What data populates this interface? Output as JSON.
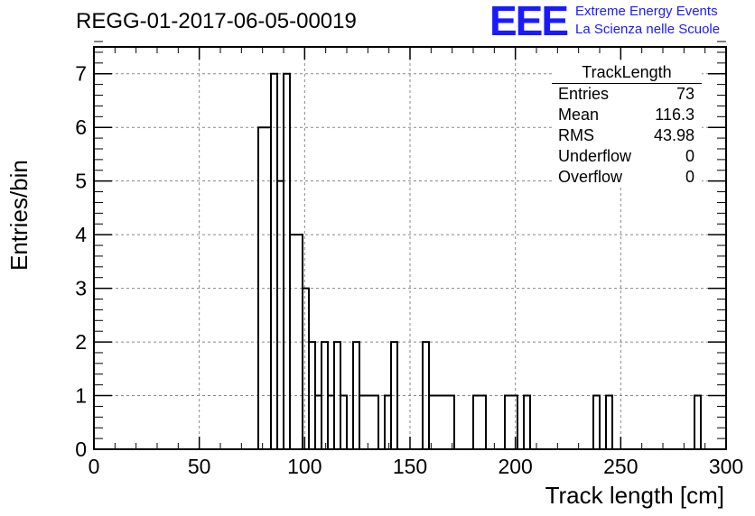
{
  "header": {
    "title": "REGG-01-2017-06-05-00019",
    "logo_text": "EEE",
    "org_line1": "Extreme Energy Events",
    "org_line2": "La Scienza nelle Scuole"
  },
  "stats": {
    "title": "TrackLength",
    "rows": [
      {
        "label": "Entries",
        "value": "73"
      },
      {
        "label": "Mean",
        "value": "116.3"
      },
      {
        "label": "RMS",
        "value": "43.98"
      },
      {
        "label": "Underflow",
        "value": "0"
      },
      {
        "label": "Overflow",
        "value": "0"
      }
    ]
  },
  "colors": {
    "logo": "#1a1aff",
    "line": "#000000",
    "grid": "#888888"
  },
  "chart_data": {
    "type": "histogram",
    "title": "REGG-01-2017-06-05-00019",
    "xlabel": "Track length [cm]",
    "ylabel": "Entries/bin",
    "xlim": [
      0,
      300
    ],
    "ylim": [
      0,
      7.5
    ],
    "grid": true,
    "bin_width": 3,
    "xticks": [
      0,
      50,
      100,
      150,
      200,
      250,
      300
    ],
    "yticks": [
      0,
      1,
      2,
      3,
      4,
      5,
      6,
      7
    ],
    "bins": [
      {
        "x0": 78,
        "x1": 84,
        "count": 6
      },
      {
        "x0": 84,
        "x1": 87,
        "count": 7
      },
      {
        "x0": 87,
        "x1": 90,
        "count": 5
      },
      {
        "x0": 90,
        "x1": 93,
        "count": 7
      },
      {
        "x0": 93,
        "x1": 99,
        "count": 4
      },
      {
        "x0": 99,
        "x1": 102,
        "count": 3
      },
      {
        "x0": 102,
        "x1": 105,
        "count": 2
      },
      {
        "x0": 105,
        "x1": 108,
        "count": 1
      },
      {
        "x0": 108,
        "x1": 111,
        "count": 2
      },
      {
        "x0": 111,
        "x1": 114,
        "count": 1
      },
      {
        "x0": 114,
        "x1": 117,
        "count": 2
      },
      {
        "x0": 117,
        "x1": 120,
        "count": 1
      },
      {
        "x0": 123,
        "x1": 126,
        "count": 2
      },
      {
        "x0": 126,
        "x1": 135,
        "count": 1
      },
      {
        "x0": 138,
        "x1": 141,
        "count": 1
      },
      {
        "x0": 141,
        "x1": 144,
        "count": 2
      },
      {
        "x0": 156,
        "x1": 159,
        "count": 2
      },
      {
        "x0": 159,
        "x1": 171,
        "count": 1
      },
      {
        "x0": 180,
        "x1": 186,
        "count": 1
      },
      {
        "x0": 195,
        "x1": 201,
        "count": 1
      },
      {
        "x0": 204,
        "x1": 207,
        "count": 1
      },
      {
        "x0": 237,
        "x1": 240,
        "count": 1
      },
      {
        "x0": 243,
        "x1": 246,
        "count": 1
      },
      {
        "x0": 285,
        "x1": 288,
        "count": 1
      }
    ]
  }
}
